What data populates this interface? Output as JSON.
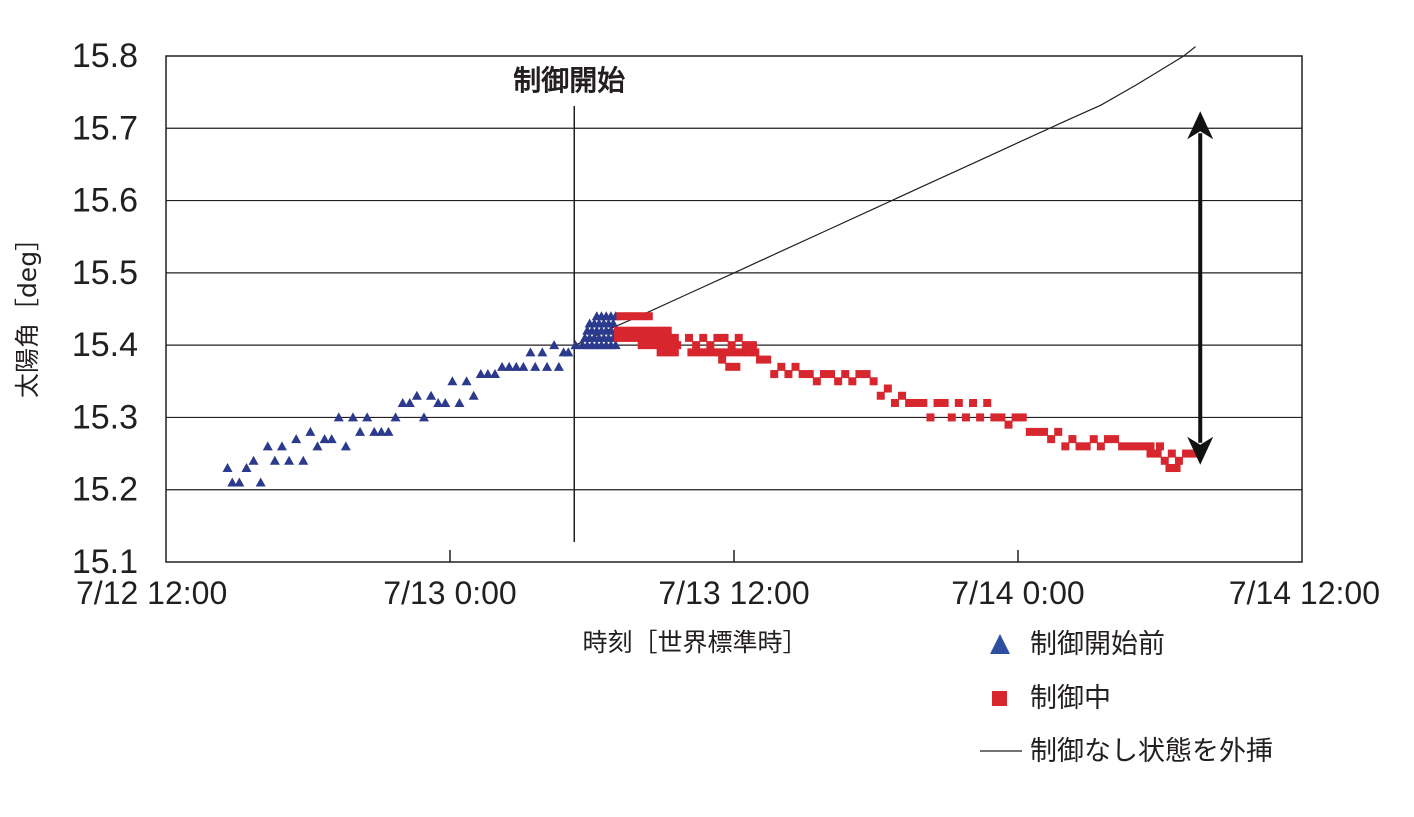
{
  "chart_data": {
    "type": "scatter",
    "ylabel": "太陽角［deg］",
    "xlabel": "時刻［世界標準時］",
    "annotation": "制御開始",
    "annotation_x": 17.25,
    "ylim": [
      15.1,
      15.8
    ],
    "yticks": [
      15.1,
      15.2,
      15.3,
      15.4,
      15.5,
      15.6,
      15.7,
      15.8
    ],
    "ytick_labels": [
      "15.1",
      "15.2",
      "15.3",
      "15.4",
      "15.5",
      "15.6",
      "15.7",
      "15.8"
    ],
    "xlim": [
      0,
      48
    ],
    "x_unit": "hours from 7/12 12:00",
    "xticks": [
      0,
      12,
      24,
      36,
      48
    ],
    "xtick_labels": [
      "7/12 12:00",
      "7/13 0:00",
      "7/13 12:00",
      "7/14 0:00",
      "7/14 12:00"
    ],
    "grid": "horizontal",
    "legend_position": "bottom-right",
    "colors": {
      "before": "#2b3a8c",
      "during": "#d7262d",
      "line": "#231f20"
    },
    "series": [
      {
        "name": "制御開始前",
        "marker": "triangle",
        "points": [
          [
            2.6,
            15.23
          ],
          [
            2.8,
            15.21
          ],
          [
            3.1,
            15.21
          ],
          [
            3.4,
            15.23
          ],
          [
            3.7,
            15.24
          ],
          [
            4.0,
            15.21
          ],
          [
            4.3,
            15.26
          ],
          [
            4.6,
            15.24
          ],
          [
            4.9,
            15.26
          ],
          [
            5.2,
            15.24
          ],
          [
            5.5,
            15.27
          ],
          [
            5.8,
            15.24
          ],
          [
            6.1,
            15.28
          ],
          [
            6.4,
            15.26
          ],
          [
            6.7,
            15.27
          ],
          [
            7.0,
            15.27
          ],
          [
            7.3,
            15.3
          ],
          [
            7.6,
            15.26
          ],
          [
            7.9,
            15.3
          ],
          [
            8.2,
            15.28
          ],
          [
            8.5,
            15.3
          ],
          [
            8.8,
            15.28
          ],
          [
            9.1,
            15.28
          ],
          [
            9.4,
            15.28
          ],
          [
            9.7,
            15.3
          ],
          [
            10.0,
            15.32
          ],
          [
            10.3,
            15.32
          ],
          [
            10.6,
            15.33
          ],
          [
            10.9,
            15.3
          ],
          [
            11.2,
            15.33
          ],
          [
            11.5,
            15.32
          ],
          [
            11.8,
            15.32
          ],
          [
            12.1,
            15.35
          ],
          [
            12.4,
            15.32
          ],
          [
            12.7,
            15.35
          ],
          [
            13.0,
            15.33
          ],
          [
            13.3,
            15.36
          ],
          [
            13.6,
            15.36
          ],
          [
            13.9,
            15.36
          ],
          [
            14.2,
            15.37
          ],
          [
            14.5,
            15.37
          ],
          [
            14.8,
            15.37
          ],
          [
            15.1,
            15.37
          ],
          [
            15.4,
            15.39
          ],
          [
            15.6,
            15.37
          ],
          [
            15.9,
            15.39
          ],
          [
            16.1,
            15.37
          ],
          [
            16.4,
            15.4
          ],
          [
            16.6,
            15.37
          ],
          [
            16.8,
            15.39
          ],
          [
            17.0,
            15.39
          ],
          [
            17.3,
            15.4
          ],
          [
            17.6,
            15.4
          ],
          [
            17.8,
            15.4
          ],
          [
            18.0,
            15.4
          ],
          [
            18.2,
            15.4
          ],
          [
            18.4,
            15.4
          ],
          [
            18.6,
            15.4
          ],
          [
            18.8,
            15.4
          ],
          [
            19.0,
            15.4
          ],
          [
            17.7,
            15.41
          ],
          [
            17.9,
            15.41
          ],
          [
            18.1,
            15.41
          ],
          [
            18.3,
            15.41
          ],
          [
            18.5,
            15.41
          ],
          [
            18.7,
            15.41
          ],
          [
            18.9,
            15.41
          ],
          [
            17.8,
            15.42
          ],
          [
            18.0,
            15.42
          ],
          [
            18.2,
            15.42
          ],
          [
            18.4,
            15.42
          ],
          [
            18.6,
            15.42
          ],
          [
            18.8,
            15.42
          ],
          [
            19.0,
            15.42
          ],
          [
            17.9,
            15.43
          ],
          [
            18.1,
            15.43
          ],
          [
            18.3,
            15.43
          ],
          [
            18.5,
            15.43
          ],
          [
            18.7,
            15.43
          ],
          [
            18.9,
            15.43
          ],
          [
            18.2,
            15.44
          ],
          [
            18.4,
            15.44
          ],
          [
            18.6,
            15.44
          ],
          [
            18.8,
            15.44
          ],
          [
            19.0,
            15.44
          ]
        ]
      },
      {
        "name": "制御中",
        "marker": "square",
        "points": [
          [
            19.2,
            15.44
          ],
          [
            19.5,
            15.44
          ],
          [
            19.8,
            15.44
          ],
          [
            20.1,
            15.44
          ],
          [
            20.4,
            15.44
          ],
          [
            19.1,
            15.42
          ],
          [
            19.4,
            15.42
          ],
          [
            19.7,
            15.42
          ],
          [
            20.0,
            15.42
          ],
          [
            20.3,
            15.42
          ],
          [
            20.6,
            15.42
          ],
          [
            20.9,
            15.42
          ],
          [
            21.2,
            15.42
          ],
          [
            19.1,
            15.41
          ],
          [
            19.4,
            15.41
          ],
          [
            19.7,
            15.41
          ],
          [
            20.0,
            15.41
          ],
          [
            20.3,
            15.41
          ],
          [
            20.6,
            15.41
          ],
          [
            20.9,
            15.41
          ],
          [
            21.2,
            15.41
          ],
          [
            21.5,
            15.41
          ],
          [
            20.1,
            15.4
          ],
          [
            20.4,
            15.4
          ],
          [
            20.7,
            15.4
          ],
          [
            21.0,
            15.4
          ],
          [
            21.3,
            15.4
          ],
          [
            21.6,
            15.4
          ],
          [
            20.9,
            15.39
          ],
          [
            21.2,
            15.39
          ],
          [
            21.5,
            15.39
          ],
          [
            22.1,
            15.41
          ],
          [
            22.4,
            15.4
          ],
          [
            22.7,
            15.41
          ],
          [
            23.0,
            15.4
          ],
          [
            23.3,
            15.41
          ],
          [
            23.6,
            15.41
          ],
          [
            23.9,
            15.4
          ],
          [
            24.2,
            15.41
          ],
          [
            24.5,
            15.4
          ],
          [
            24.8,
            15.4
          ],
          [
            22.2,
            15.39
          ],
          [
            22.5,
            15.39
          ],
          [
            22.8,
            15.39
          ],
          [
            23.1,
            15.39
          ],
          [
            23.4,
            15.39
          ],
          [
            23.7,
            15.39
          ],
          [
            24.0,
            15.39
          ],
          [
            24.3,
            15.39
          ],
          [
            24.6,
            15.39
          ],
          [
            24.9,
            15.39
          ],
          [
            23.5,
            15.38
          ],
          [
            23.8,
            15.37
          ],
          [
            24.1,
            15.37
          ],
          [
            25.1,
            15.38
          ],
          [
            25.4,
            15.38
          ],
          [
            25.7,
            15.36
          ],
          [
            26.0,
            15.37
          ],
          [
            26.3,
            15.36
          ],
          [
            26.6,
            15.37
          ],
          [
            26.9,
            15.36
          ],
          [
            27.2,
            15.36
          ],
          [
            27.5,
            15.35
          ],
          [
            27.8,
            15.36
          ],
          [
            28.1,
            15.36
          ],
          [
            28.4,
            15.35
          ],
          [
            28.7,
            15.36
          ],
          [
            29.0,
            15.35
          ],
          [
            29.3,
            15.36
          ],
          [
            29.6,
            15.36
          ],
          [
            29.9,
            15.35
          ],
          [
            30.2,
            15.33
          ],
          [
            30.5,
            15.34
          ],
          [
            30.8,
            15.32
          ],
          [
            31.1,
            15.33
          ],
          [
            31.4,
            15.32
          ],
          [
            31.7,
            15.32
          ],
          [
            32.0,
            15.32
          ],
          [
            32.3,
            15.3
          ],
          [
            32.6,
            15.32
          ],
          [
            32.9,
            15.32
          ],
          [
            33.2,
            15.3
          ],
          [
            33.5,
            15.32
          ],
          [
            33.8,
            15.3
          ],
          [
            34.1,
            15.32
          ],
          [
            34.4,
            15.3
          ],
          [
            34.7,
            15.32
          ],
          [
            35.0,
            15.3
          ],
          [
            35.3,
            15.3
          ],
          [
            35.6,
            15.29
          ],
          [
            35.9,
            15.3
          ],
          [
            36.2,
            15.3
          ],
          [
            36.5,
            15.28
          ],
          [
            36.8,
            15.28
          ],
          [
            37.1,
            15.28
          ],
          [
            37.4,
            15.27
          ],
          [
            37.7,
            15.28
          ],
          [
            38.0,
            15.26
          ],
          [
            38.3,
            15.27
          ],
          [
            38.6,
            15.26
          ],
          [
            38.9,
            15.26
          ],
          [
            39.2,
            15.27
          ],
          [
            39.5,
            15.26
          ],
          [
            39.8,
            15.27
          ],
          [
            40.1,
            15.27
          ],
          [
            40.4,
            15.26
          ],
          [
            40.7,
            15.26
          ],
          [
            41.0,
            15.26
          ],
          [
            41.3,
            15.26
          ],
          [
            41.6,
            15.26
          ],
          [
            42.0,
            15.26
          ],
          [
            41.6,
            15.25
          ],
          [
            41.9,
            15.25
          ],
          [
            42.2,
            15.24
          ],
          [
            42.5,
            15.25
          ],
          [
            42.8,
            15.24
          ],
          [
            43.1,
            15.25
          ],
          [
            43.4,
            15.25
          ],
          [
            42.4,
            15.23
          ],
          [
            42.7,
            15.23
          ]
        ]
      },
      {
        "name": "制御なし状態を外挿",
        "marker": "line",
        "points": [
          [
            17.3,
            15.4
          ],
          [
            19,
            15.426
          ],
          [
            20,
            15.44
          ],
          [
            22,
            15.47
          ],
          [
            24,
            15.5
          ],
          [
            26,
            15.53
          ],
          [
            28,
            15.56
          ],
          [
            30,
            15.59
          ],
          [
            32,
            15.62
          ],
          [
            34,
            15.65
          ],
          [
            36,
            15.68
          ],
          [
            38,
            15.71
          ],
          [
            39.5,
            15.732
          ],
          [
            41,
            15.76
          ],
          [
            42,
            15.78
          ],
          [
            43,
            15.8
          ],
          [
            43.5,
            15.813
          ]
        ]
      }
    ],
    "arrow": {
      "x": 43.7,
      "from": 15.718,
      "to": 15.24
    }
  }
}
